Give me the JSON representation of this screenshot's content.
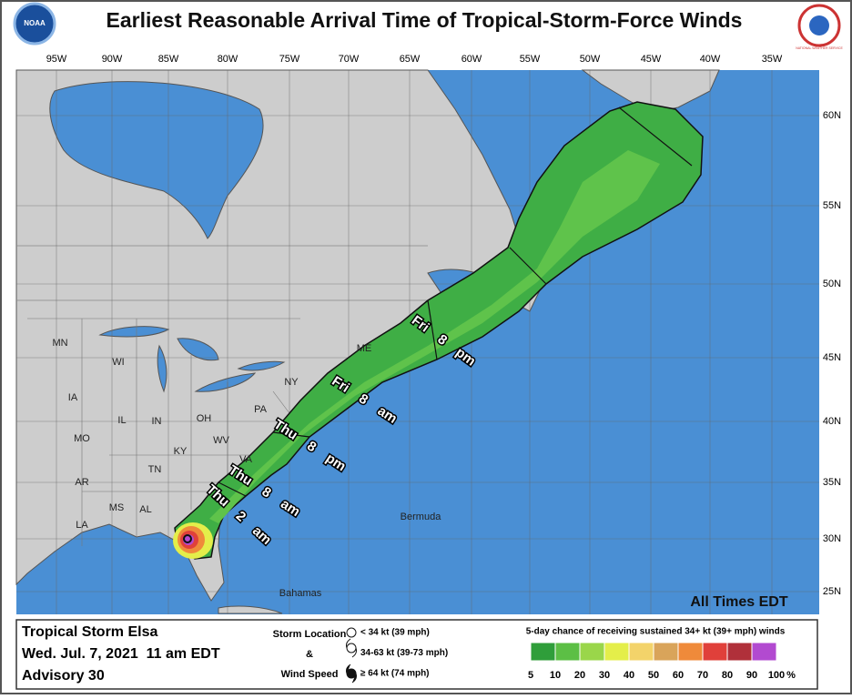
{
  "header": {
    "title": "Earliest Reasonable Arrival Time of Tropical-Storm-Force Winds",
    "noaa_logo": "NOAA",
    "nws_logo": "NATIONAL WEATHER SERVICE"
  },
  "map": {
    "longitudes": [
      "95W",
      "90W",
      "85W",
      "80W",
      "75W",
      "70W",
      "65W",
      "60W",
      "55W",
      "50W",
      "45W",
      "40W",
      "35W"
    ],
    "latitudes": [
      "60N",
      "55N",
      "50N",
      "45N",
      "40N",
      "35N",
      "30N",
      "25N"
    ],
    "places": [
      "MN",
      "WI",
      "IA",
      "IL",
      "IN",
      "OH",
      "PA",
      "NY",
      "ME",
      "MO",
      "KY",
      "WV",
      "VA",
      "TN",
      "AR",
      "MS",
      "AL",
      "LA",
      "Bermuda",
      "Bahamas"
    ],
    "arrival_times": [
      "Fri 8 pm",
      "Fri 8 am",
      "Thu 8 pm",
      "Thu 8 am",
      "Thu 2 am"
    ],
    "note": "All Times EDT"
  },
  "footer": {
    "storm": "Tropical Storm Elsa",
    "issued": "Wed. Jul. 7, 2021  11 am EDT",
    "advisory": "Advisory 30",
    "key": {
      "lines": [
        "Storm Location",
        "&",
        "Wind Speed"
      ],
      "symbols": [
        "< 34 kt (39 mph)",
        "34-63 kt (39-73 mph)",
        "≥ 64 kt (74 mph)"
      ]
    },
    "legend": {
      "title": "5-day chance of receiving sustained 34+ kt (39+ mph) winds",
      "colors": [
        "#2f9e3a",
        "#5cbf45",
        "#9ad64a",
        "#e4ee4a",
        "#f3d36a",
        "#d9a45a",
        "#ef8a3a",
        "#e0403a",
        "#b0303a",
        "#b24ad0"
      ],
      "ticks": [
        5,
        10,
        20,
        30,
        40,
        50,
        60,
        70,
        80,
        90,
        100
      ],
      "unit": "%"
    }
  }
}
